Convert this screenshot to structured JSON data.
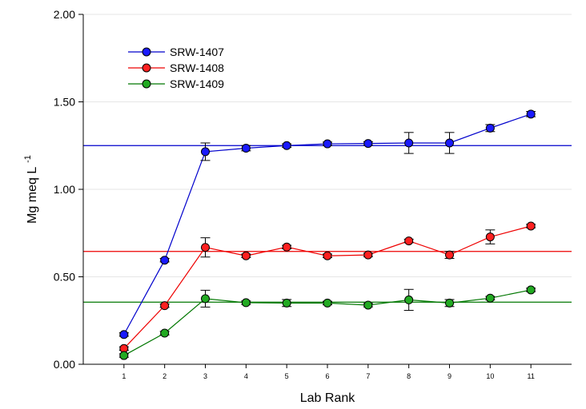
{
  "chart_data": {
    "type": "line",
    "xlabel": "Lab Rank",
    "ylabel": "Mg meq L",
    "ylabel_superscript": "-1",
    "x": [
      1,
      2,
      3,
      4,
      5,
      6,
      7,
      8,
      9,
      10,
      11
    ],
    "x_tick_labels": [
      "1",
      "2",
      "3",
      "4",
      "5",
      "6",
      "7",
      "8",
      "9",
      "10",
      "11"
    ],
    "xlim": [
      0,
      12
    ],
    "ylim": [
      0,
      2
    ],
    "y_ticks": [
      0,
      0.5,
      1.0,
      1.5,
      2.0
    ],
    "y_tick_labels": [
      "0.00",
      "0.50",
      "1.00",
      "1.50",
      "2.00"
    ],
    "grid": true,
    "legend_position": "top-left",
    "series": [
      {
        "name": "SRW-1407",
        "color": "#0000cc",
        "marker_color": "#1a1aff",
        "reference_line": 1.25,
        "values": [
          0.17,
          0.595,
          1.215,
          1.235,
          1.25,
          1.26,
          1.262,
          1.265,
          1.265,
          1.35,
          1.43
        ],
        "errors": [
          0.01,
          0.01,
          0.05,
          0.015,
          0.01,
          0.01,
          0.01,
          0.06,
          0.06,
          0.02,
          0.015
        ]
      },
      {
        "name": "SRW-1408",
        "color": "#ee0000",
        "marker_color": "#ff2020",
        "reference_line": 0.645,
        "values": [
          0.09,
          0.335,
          0.668,
          0.62,
          0.67,
          0.62,
          0.625,
          0.705,
          0.625,
          0.728,
          0.79
        ],
        "errors": [
          0.01,
          0.01,
          0.055,
          0.01,
          0.01,
          0.01,
          0.01,
          0.01,
          0.02,
          0.04,
          0.01
        ]
      },
      {
        "name": "SRW-1409",
        "color": "#007700",
        "marker_color": "#22aa22",
        "reference_line": 0.355,
        "values": [
          0.05,
          0.178,
          0.375,
          0.352,
          0.35,
          0.35,
          0.338,
          0.368,
          0.35,
          0.378,
          0.425
        ],
        "errors": [
          0.01,
          0.01,
          0.048,
          0.01,
          0.02,
          0.01,
          0.01,
          0.06,
          0.02,
          0.01,
          0.01
        ]
      }
    ]
  }
}
